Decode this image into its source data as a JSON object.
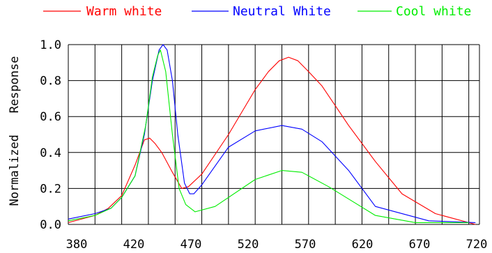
{
  "chart_data": {
    "type": "line",
    "title": "",
    "xlabel": "",
    "ylabel": "Normalized   Response",
    "xlim": [
      380,
      720
    ],
    "ylim": [
      0,
      1.0
    ],
    "x_ticks": [
      380,
      420,
      470,
      520,
      570,
      620,
      670,
      720
    ],
    "x_tick_labels": [
      "380",
      "420",
      "470",
      "520",
      "570",
      "620",
      "670",
      "720"
    ],
    "y_ticks": [
      0,
      0.2,
      0.4,
      0.6,
      0.8,
      1.0
    ],
    "y_tick_labels": [
      "0.0",
      "0.2",
      "0.4",
      "0.6",
      "0.8",
      "1.0"
    ],
    "grid": true,
    "legend_position": "top",
    "series": [
      {
        "name": "Warm white",
        "color": "#ff0000",
        "points": [
          [
            380,
            0.01
          ],
          [
            400,
            0.05
          ],
          [
            410,
            0.09
          ],
          [
            420,
            0.16
          ],
          [
            430,
            0.33
          ],
          [
            437,
            0.47
          ],
          [
            441,
            0.48
          ],
          [
            445,
            0.45
          ],
          [
            450,
            0.4
          ],
          [
            458,
            0.29
          ],
          [
            465,
            0.2
          ],
          [
            470,
            0.21
          ],
          [
            480,
            0.28
          ],
          [
            500,
            0.5
          ],
          [
            520,
            0.75
          ],
          [
            530,
            0.85
          ],
          [
            538,
            0.91
          ],
          [
            545,
            0.93
          ],
          [
            552,
            0.91
          ],
          [
            560,
            0.85
          ],
          [
            570,
            0.77
          ],
          [
            590,
            0.55
          ],
          [
            610,
            0.35
          ],
          [
            630,
            0.17
          ],
          [
            655,
            0.06
          ],
          [
            685,
            0.0
          ]
        ]
      },
      {
        "name": "Neutral White",
        "color": "#0000ff",
        "points": [
          [
            380,
            0.03
          ],
          [
            400,
            0.06
          ],
          [
            412,
            0.09
          ],
          [
            420,
            0.15
          ],
          [
            430,
            0.27
          ],
          [
            437,
            0.5
          ],
          [
            443,
            0.8
          ],
          [
            448,
            0.97
          ],
          [
            451,
            1.0
          ],
          [
            454,
            0.97
          ],
          [
            458,
            0.8
          ],
          [
            462,
            0.5
          ],
          [
            467,
            0.23
          ],
          [
            471,
            0.17
          ],
          [
            474,
            0.17
          ],
          [
            480,
            0.22
          ],
          [
            500,
            0.43
          ],
          [
            520,
            0.52
          ],
          [
            540,
            0.55
          ],
          [
            555,
            0.53
          ],
          [
            570,
            0.46
          ],
          [
            590,
            0.3
          ],
          [
            610,
            0.1
          ],
          [
            650,
            0.02
          ],
          [
            685,
            0.01
          ]
        ]
      },
      {
        "name": "Cool white",
        "color": "#00ee00",
        "points": [
          [
            380,
            0.02
          ],
          [
            400,
            0.05
          ],
          [
            412,
            0.09
          ],
          [
            420,
            0.15
          ],
          [
            430,
            0.27
          ],
          [
            438,
            0.55
          ],
          [
            443,
            0.82
          ],
          [
            447,
            0.94
          ],
          [
            449,
            0.97
          ],
          [
            453,
            0.85
          ],
          [
            458,
            0.5
          ],
          [
            463,
            0.2
          ],
          [
            468,
            0.11
          ],
          [
            475,
            0.07
          ],
          [
            490,
            0.1
          ],
          [
            520,
            0.25
          ],
          [
            540,
            0.3
          ],
          [
            555,
            0.29
          ],
          [
            575,
            0.21
          ],
          [
            610,
            0.05
          ],
          [
            640,
            0.01
          ],
          [
            680,
            0.01
          ]
        ]
      }
    ]
  }
}
